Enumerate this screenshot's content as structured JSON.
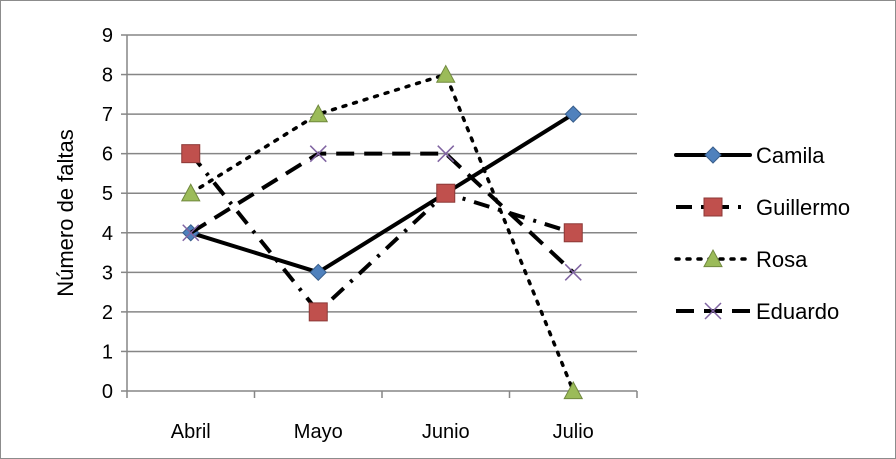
{
  "chart_data": {
    "type": "line",
    "categories": [
      "Abril",
      "Mayo",
      "Junio",
      "Julio"
    ],
    "ylabel": "Número de faltas",
    "ylim": [
      0,
      9
    ],
    "yticks": [
      "0",
      "1",
      "2",
      "3",
      "4",
      "5",
      "6",
      "7",
      "8",
      "9"
    ],
    "grid": true,
    "legend_position": "right",
    "series": [
      {
        "name": "Camila",
        "values": [
          4,
          3,
          5,
          7
        ],
        "marker": "diamond",
        "line_style": "solid",
        "marker_color": "#4f81bd"
      },
      {
        "name": "Guillermo",
        "values": [
          6,
          2,
          5,
          4
        ],
        "marker": "square",
        "line_style": "dash-dot",
        "marker_color": "#c0504d"
      },
      {
        "name": "Rosa",
        "values": [
          5,
          7,
          8,
          0
        ],
        "marker": "triangle",
        "line_style": "dotted",
        "marker_color": "#9bbb59"
      },
      {
        "name": "Eduardo",
        "values": [
          4,
          6,
          6,
          3
        ],
        "marker": "x",
        "line_style": "dashed",
        "marker_color": "#8064a2"
      }
    ]
  }
}
